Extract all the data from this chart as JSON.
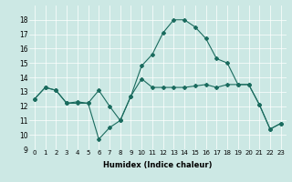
{
  "xlabel": "Humidex (Indice chaleur)",
  "ylabel": "",
  "xlim": [
    -0.5,
    23.5
  ],
  "ylim": [
    9,
    19
  ],
  "yticks": [
    9,
    10,
    11,
    12,
    13,
    14,
    15,
    16,
    17,
    18
  ],
  "xticks": [
    0,
    1,
    2,
    3,
    4,
    5,
    6,
    7,
    8,
    9,
    10,
    11,
    12,
    13,
    14,
    15,
    16,
    17,
    18,
    19,
    20,
    21,
    22,
    23
  ],
  "bg_color": "#cce8e4",
  "line_color": "#1a6b5e",
  "line1_x": [
    0,
    1,
    2,
    3,
    4,
    5,
    6,
    7,
    8,
    9,
    10,
    11,
    12,
    13,
    14,
    15,
    16,
    17,
    18,
    19,
    20,
    21,
    22,
    23
  ],
  "line1_y": [
    12.5,
    13.3,
    13.1,
    12.2,
    12.3,
    12.2,
    13.1,
    12.0,
    11.0,
    12.7,
    13.9,
    13.3,
    13.3,
    13.3,
    13.3,
    13.4,
    13.5,
    13.3,
    13.5,
    13.5,
    13.5,
    12.1,
    10.4,
    10.8
  ],
  "line2_x": [
    0,
    1,
    2,
    3,
    4,
    5,
    6,
    7,
    8,
    9,
    10,
    11,
    12,
    13,
    14,
    15,
    16,
    17,
    18,
    19,
    20,
    21,
    22,
    23
  ],
  "line2_y": [
    12.5,
    13.3,
    13.1,
    12.2,
    12.2,
    12.2,
    9.7,
    10.5,
    11.0,
    12.7,
    14.8,
    15.6,
    17.1,
    18.0,
    18.0,
    17.5,
    16.7,
    15.3,
    15.0,
    13.5,
    13.5,
    12.1,
    10.4,
    10.8
  ]
}
